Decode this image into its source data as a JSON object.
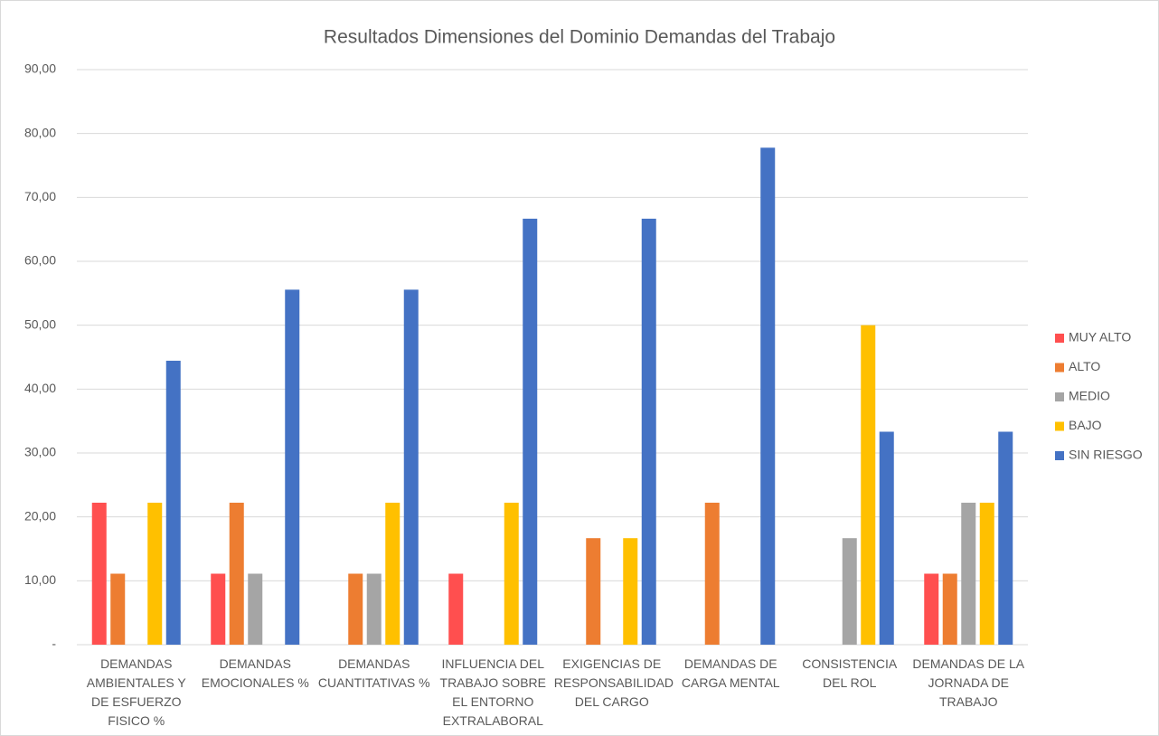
{
  "chart_data": {
    "type": "bar",
    "title": "Resultados Dimensiones del Dominio Demandas del Trabajo",
    "categories": [
      "DEMANDAS AMBIENTALES Y DE ESFUERZO FISICO %",
      "DEMANDAS EMOCIONALES %",
      "DEMANDAS CUANTITATIVAS %",
      "INFLUENCIA DEL TRABAJO SOBRE EL ENTORNO EXTRALABORAL",
      "EXIGENCIAS DE RESPONSABILIDAD DEL CARGO",
      "DEMANDAS DE CARGA MENTAL",
      "CONSISTENCIA DEL ROL",
      "DEMANDAS DE LA JORNADA DE TRABAJO"
    ],
    "series": [
      {
        "name": "MUY ALTO",
        "color": "#ff4f4f",
        "values": [
          22.22,
          11.11,
          0,
          11.11,
          0,
          0,
          0,
          11.11
        ]
      },
      {
        "name": "ALTO",
        "color": "#ed7d31",
        "values": [
          11.11,
          22.22,
          11.11,
          0,
          16.67,
          22.22,
          0,
          11.11
        ]
      },
      {
        "name": "MEDIO",
        "color": "#a5a5a5",
        "values": [
          0,
          11.11,
          11.11,
          0,
          0,
          0,
          16.67,
          22.22
        ]
      },
      {
        "name": "BAJO",
        "color": "#ffc000",
        "values": [
          22.22,
          0,
          22.22,
          22.22,
          16.67,
          0,
          50,
          22.22
        ]
      },
      {
        "name": "SIN RIESGO",
        "color": "#4472c4",
        "values": [
          44.44,
          55.56,
          55.56,
          66.67,
          66.67,
          77.78,
          33.33,
          33.33
        ]
      }
    ],
    "ylim": [
      0,
      90
    ],
    "yticks": [
      {
        "value": 0,
        "label": "-"
      },
      {
        "value": 10,
        "label": "10,00"
      },
      {
        "value": 20,
        "label": "20,00"
      },
      {
        "value": 30,
        "label": "30,00"
      },
      {
        "value": 40,
        "label": "40,00"
      },
      {
        "value": 50,
        "label": "50,00"
      },
      {
        "value": 60,
        "label": "60,00"
      },
      {
        "value": 70,
        "label": "70,00"
      },
      {
        "value": 80,
        "label": "80,00"
      },
      {
        "value": 90,
        "label": "90,00"
      }
    ],
    "grid": true,
    "legend": "right"
  }
}
